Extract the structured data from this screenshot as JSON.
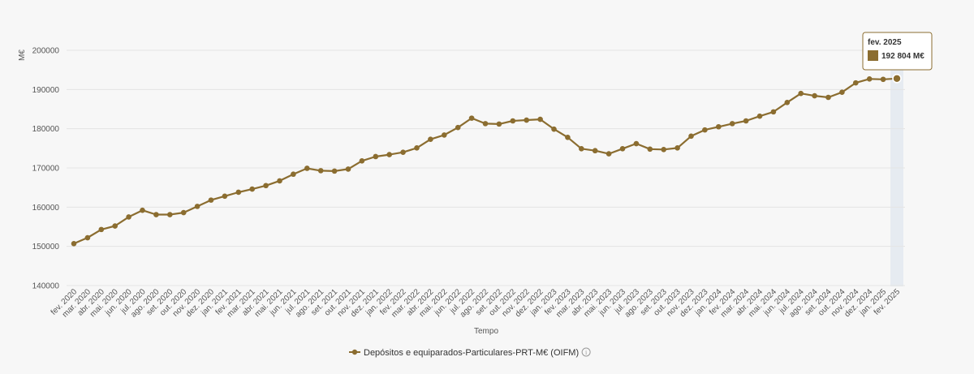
{
  "chart_data": {
    "type": "line",
    "title": "",
    "ylabel": "M€",
    "xlabel": "Tempo",
    "ylim": [
      140000,
      200000
    ],
    "yticks": [
      140000,
      150000,
      160000,
      170000,
      180000,
      190000,
      200000
    ],
    "grid": true,
    "legend_position": "bottom-center",
    "categories": [
      "fev. 2020",
      "mar. 2020",
      "abr. 2020",
      "mai. 2020",
      "jun. 2020",
      "jul. 2020",
      "ago. 2020",
      "set. 2020",
      "out. 2020",
      "nov. 2020",
      "dez. 2020",
      "jan. 2021",
      "fev. 2021",
      "mar. 2021",
      "abr. 2021",
      "mai. 2021",
      "jun. 2021",
      "jul. 2021",
      "ago. 2021",
      "set. 2021",
      "out. 2021",
      "nov. 2021",
      "dez. 2021",
      "jan. 2022",
      "fev. 2022",
      "mar. 2022",
      "abr. 2022",
      "mai. 2022",
      "jun. 2022",
      "jul. 2022",
      "ago. 2022",
      "set. 2022",
      "out. 2022",
      "nov. 2022",
      "dez. 2022",
      "jan. 2023",
      "fev. 2023",
      "mar. 2023",
      "abr. 2023",
      "mai. 2023",
      "jun. 2023",
      "jul. 2023",
      "ago. 2023",
      "set. 2023",
      "out. 2023",
      "nov. 2023",
      "dez. 2023",
      "jan. 2024",
      "fev. 2024",
      "mar. 2024",
      "abr. 2024",
      "mai. 2024",
      "jun. 2024",
      "jul. 2024",
      "ago. 2024",
      "set. 2024",
      "out. 2024",
      "nov. 2024",
      "dez. 2024",
      "jan. 2025",
      "fev. 2025"
    ],
    "series": [
      {
        "name": "Depósitos e equiparados-Particulares-PRT-M€ (OIFM)",
        "color": "#8b6d30",
        "values": [
          150700,
          152200,
          154300,
          155200,
          157500,
          159200,
          158100,
          158100,
          158600,
          160200,
          161800,
          162800,
          163800,
          164600,
          165500,
          166700,
          168400,
          169900,
          169300,
          169200,
          169700,
          171800,
          172900,
          173400,
          174000,
          175100,
          177300,
          178400,
          180300,
          182700,
          181300,
          181200,
          182000,
          182200,
          182400,
          179900,
          177800,
          174900,
          174400,
          173600,
          174900,
          176200,
          174800,
          174700,
          175100,
          178100,
          179700,
          180500,
          181300,
          182000,
          183200,
          184300,
          186700,
          189000,
          188400,
          188000,
          189300,
          191700,
          192700,
          192600,
          192804
        ]
      }
    ],
    "tooltip": {
      "title": "fev. 2025",
      "value_label": "192 804 M€"
    }
  }
}
